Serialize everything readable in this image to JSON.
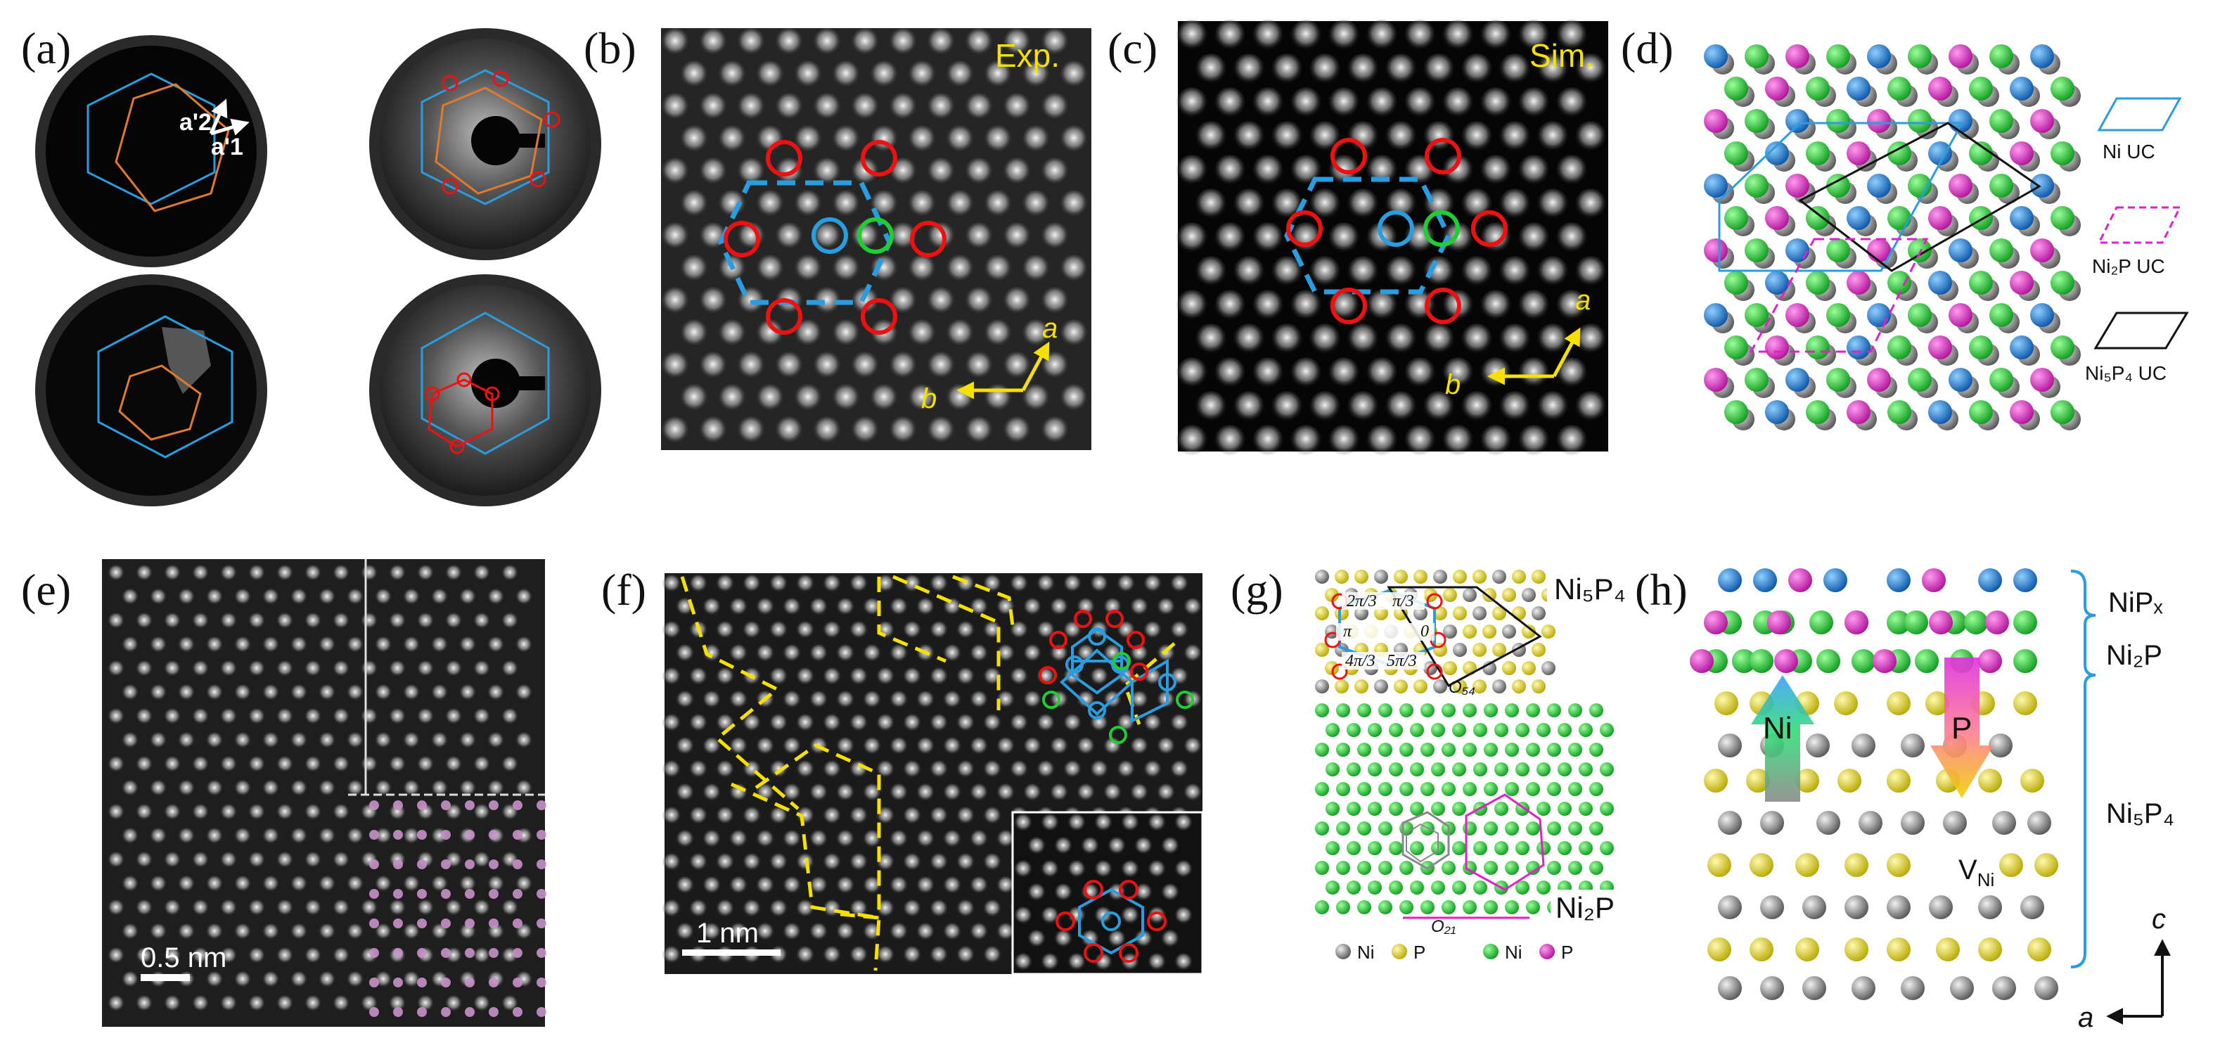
{
  "panels": {
    "a": {
      "label": "(a)",
      "vec1": "a'1",
      "vec2": "a'2"
    },
    "b": {
      "label": "(b)",
      "tag": "Exp.",
      "axis_a": "a",
      "axis_b": "b"
    },
    "c": {
      "label": "(c)",
      "tag": "Sim.",
      "axis_a": "a",
      "axis_b": "b"
    },
    "d": {
      "label": "(d)",
      "legend": [
        "Ni UC",
        "Ni₂P UC",
        "Ni₅P₄ UC"
      ]
    },
    "e": {
      "label": "(e)",
      "scalebar": "0.5 nm"
    },
    "f": {
      "label": "(f)",
      "scalebar": "1 nm"
    },
    "g": {
      "label": "(g)",
      "top_phase": "Ni₅P₄",
      "bottom_phase": "Ni₂P",
      "phases": [
        "2π/3",
        "π/3",
        "π",
        "0",
        "4π/3",
        "5π/3"
      ],
      "o54": "O₅₄",
      "o21": "O₂₁",
      "legend": [
        "Ni",
        "P",
        "Ni",
        "P"
      ]
    },
    "h": {
      "label": "(h)",
      "layers": [
        "NiPₓ",
        "Ni₂P",
        "Ni₅P₄"
      ],
      "arrow_ni": "Ni",
      "arrow_p": "P",
      "vacancy": "V",
      "vacancy_sub": "Ni",
      "axis_c": "c",
      "axis_a": "a"
    }
  },
  "colors": {
    "blue_atom": "#1f78d1",
    "green_atom": "#22cc33",
    "magenta_atom": "#e020c8",
    "gray_atom": "#9a9a9a",
    "yellow_atom": "#e8d800",
    "red_ring": "#e11",
    "cyan_ring": "#2a9de0",
    "yellow_line": "#f5e000",
    "pink_atom": "#c890c8"
  }
}
